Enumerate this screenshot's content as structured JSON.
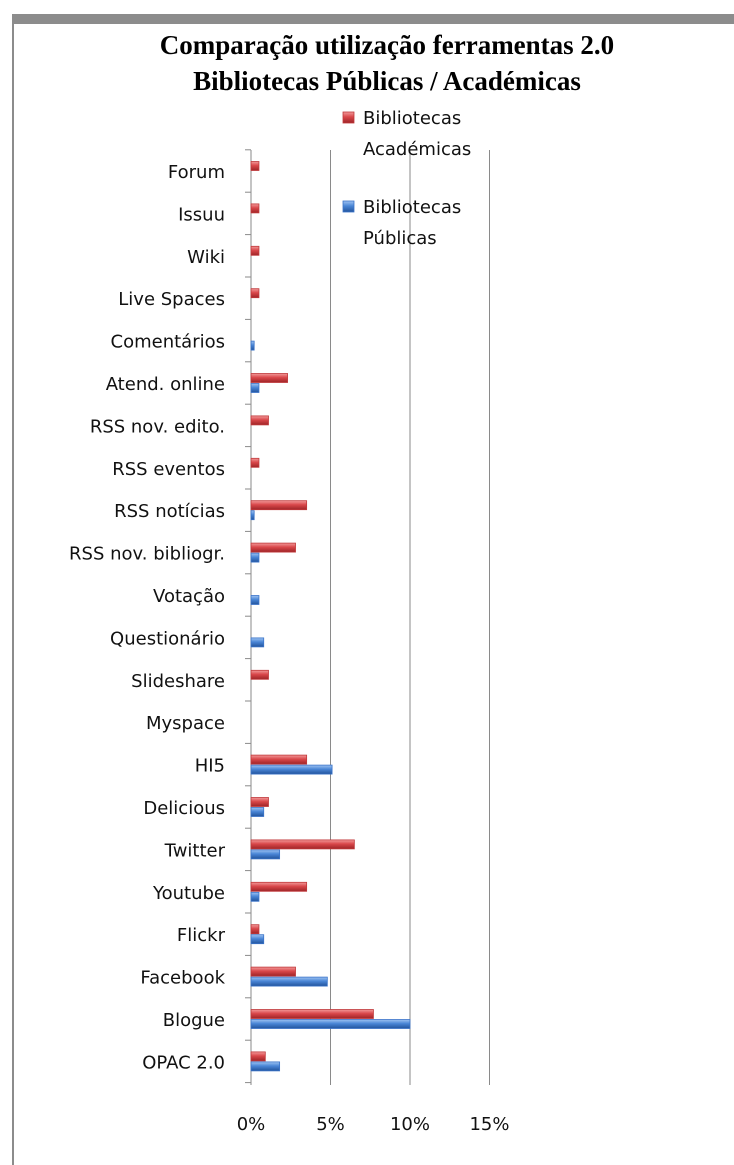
{
  "chart_data": {
    "type": "bar",
    "orientation": "horizontal",
    "title_lines": [
      "Comparação utilização ferramentas 2.0",
      "Bibliotecas Públicas / Académicas"
    ],
    "categories": [
      "Forum",
      "Issuu",
      "Wiki",
      "Live Spaces",
      "Comentários",
      "Atend. online",
      "RSS nov. edito.",
      "RSS eventos",
      "RSS notícias",
      "RSS nov. bibliogr.",
      "Votação",
      "Questionário",
      "Slideshare",
      "Myspace",
      "HI5",
      "Delicious",
      "Twitter",
      "Youtube",
      "Flickr",
      "Facebook",
      "Blogue",
      "OPAC 2.0"
    ],
    "series": [
      {
        "name": "Bibliotecas Académicas",
        "color": "#c0393b",
        "values": [
          0.5,
          0.5,
          0.5,
          0.5,
          0,
          2.3,
          1.1,
          0.5,
          3.5,
          2.8,
          0,
          0,
          1.1,
          0,
          3.5,
          1.1,
          6.5,
          3.5,
          0.5,
          2.8,
          7.7,
          0.9
        ]
      },
      {
        "name": "Bibliotecas Públicas",
        "color": "#3b74c9",
        "values": [
          0,
          0,
          0,
          0,
          0.2,
          0.5,
          0,
          0,
          0.2,
          0.5,
          0.5,
          0.8,
          0,
          0,
          5.1,
          0.8,
          1.8,
          0.5,
          0.8,
          4.8,
          10.0,
          1.8
        ]
      }
    ],
    "xlim": [
      0,
      15
    ],
    "xticks": [
      "0%",
      "5%",
      "10%",
      "15%"
    ],
    "grid": true,
    "legend": {
      "position": "top-right",
      "entries": [
        {
          "lines": [
            "Bibliotecas",
            "Académicas"
          ],
          "color": "#c0393b"
        },
        {
          "lines": [
            "Bibliotecas",
            "Públicas"
          ],
          "color": "#3b74c9"
        }
      ]
    }
  }
}
